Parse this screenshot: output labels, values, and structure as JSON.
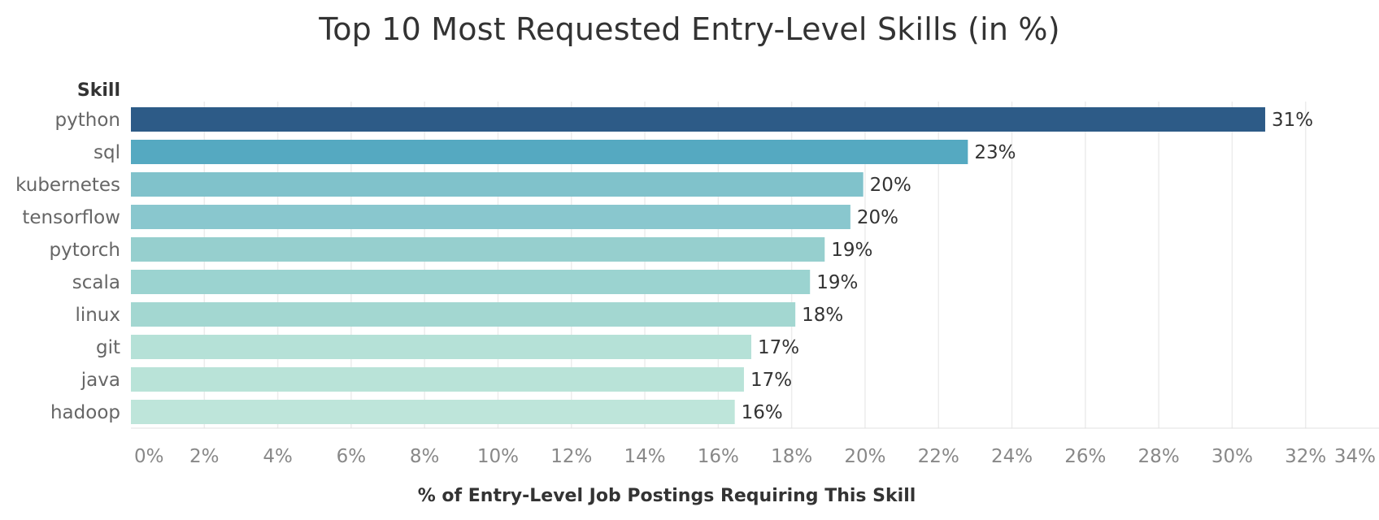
{
  "chart_data": {
    "type": "bar",
    "orientation": "horizontal",
    "title": "Top 10 Most Requested Entry-Level Skills (in %)",
    "ylabel": "Skill",
    "xlabel": "% of Entry-Level Job Postings Requiring This Skill",
    "xlim": [
      0,
      34
    ],
    "x_ticks": [
      "0%",
      "2%",
      "4%",
      "6%",
      "8%",
      "10%",
      "12%",
      "14%",
      "16%",
      "18%",
      "20%",
      "22%",
      "24%",
      "26%",
      "28%",
      "30%",
      "32%",
      "34%"
    ],
    "grid": true,
    "categories": [
      "python",
      "sql",
      "kubernetes",
      "tensorflow",
      "pytorch",
      "scala",
      "linux",
      "git",
      "java",
      "hadoop"
    ],
    "values": [
      30.9,
      22.8,
      19.95,
      19.6,
      18.9,
      18.5,
      18.1,
      16.9,
      16.7,
      16.45
    ],
    "data_labels": [
      "31%",
      "23%",
      "20%",
      "20%",
      "19%",
      "19%",
      "18%",
      "17%",
      "17%",
      "16%"
    ],
    "colors": [
      "#2d5b87",
      "#55a9c1",
      "#80c2cb",
      "#89c7ce",
      "#96cfce",
      "#9bd3d0",
      "#a3d7d1",
      "#b5e1d7",
      "#b9e3d8",
      "#bee5da"
    ]
  }
}
